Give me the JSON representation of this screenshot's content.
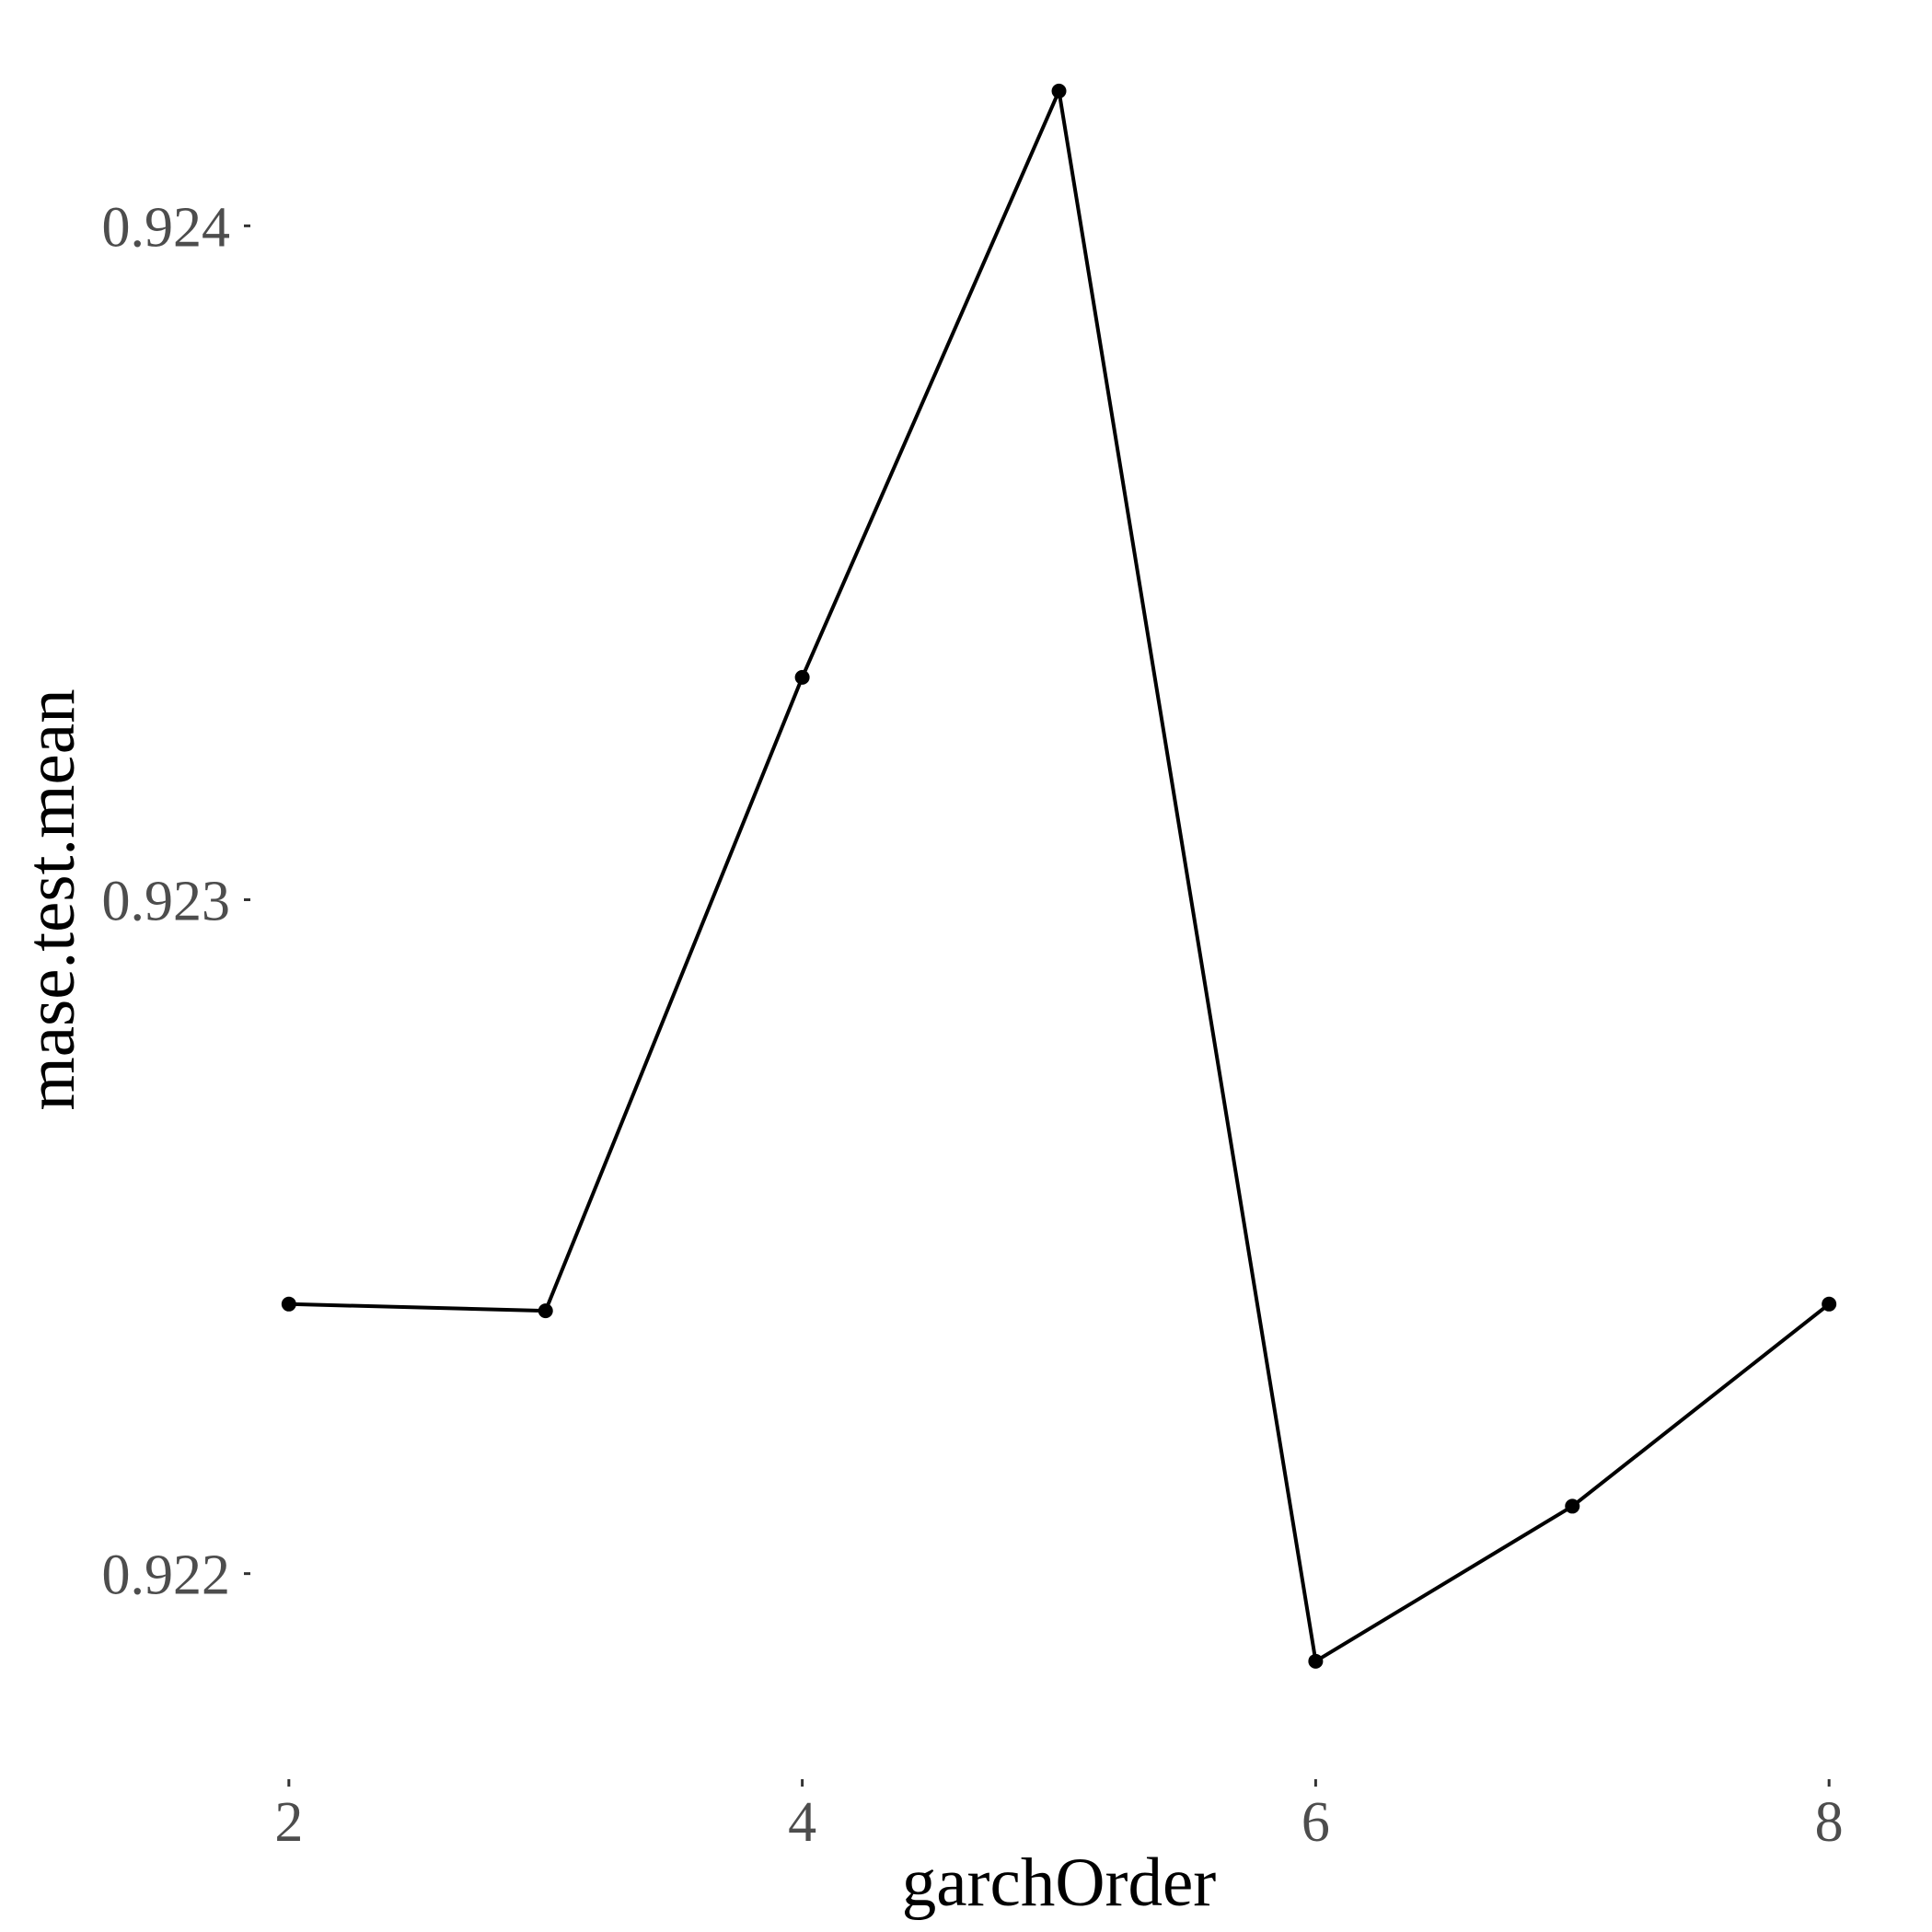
{
  "chart_data": {
    "type": "line",
    "title": "",
    "xlabel": "garchOrder",
    "ylabel": "mase.test.mean",
    "x": [
      2,
      3,
      4,
      5,
      6,
      7,
      8
    ],
    "series": [
      {
        "values": [
          0.9224,
          0.92239,
          0.92333,
          0.9242,
          0.92187,
          0.9221,
          0.9224
        ]
      }
    ],
    "xticks": [
      2,
      4,
      6,
      8
    ],
    "xtick_labels": [
      "2",
      "4",
      "6",
      "8"
    ],
    "yticks": [
      0.922,
      0.923,
      0.924
    ],
    "ytick_labels": [
      "0.922",
      "0.923",
      "0.924"
    ],
    "xlim": [
      1.85,
      8.15
    ],
    "ylim": [
      0.92174,
      0.92426
    ],
    "grid": false,
    "legend": "none",
    "colors": {
      "line": "#000000",
      "point": "#000000",
      "tick_label": "#4d4d4d",
      "axis_title": "#000000"
    }
  }
}
